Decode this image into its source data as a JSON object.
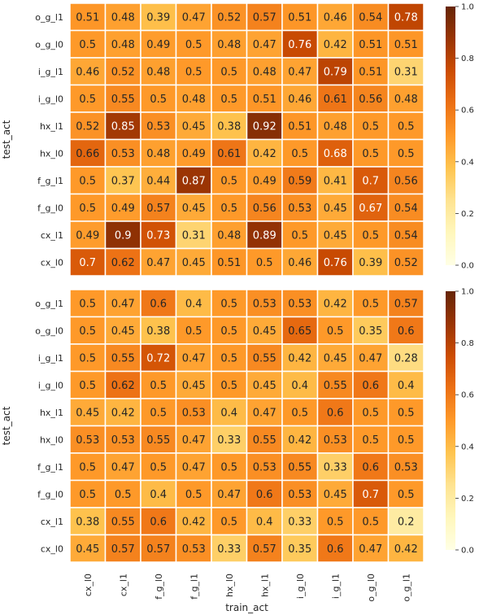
{
  "chart_data": [
    {
      "type": "heatmap",
      "xlabel": "",
      "ylabel": "test_act",
      "x_categories": [
        "cx_l0",
        "cx_l1",
        "f_g_l0",
        "f_g_l1",
        "hx_l0",
        "hx_l1",
        "i_g_l0",
        "i_g_l1",
        "o_g_l0",
        "o_g_l1"
      ],
      "y_categories": [
        "o_g_l1",
        "o_g_l0",
        "i_g_l1",
        "i_g_l0",
        "hx_l1",
        "hx_l0",
        "f_g_l1",
        "f_g_l0",
        "cx_l1",
        "cx_l0"
      ],
      "values": [
        [
          "0.51",
          "0.48",
          "0.39",
          "0.47",
          "0.52",
          "0.57",
          "0.51",
          "0.46",
          "0.54",
          "0.78"
        ],
        [
          "0.5",
          "0.48",
          "0.49",
          "0.5",
          "0.48",
          "0.47",
          "0.76",
          "0.42",
          "0.51",
          "0.51"
        ],
        [
          "0.46",
          "0.52",
          "0.48",
          "0.5",
          "0.5",
          "0.48",
          "0.47",
          "0.79",
          "0.51",
          "0.31"
        ],
        [
          "0.5",
          "0.55",
          "0.5",
          "0.48",
          "0.5",
          "0.51",
          "0.46",
          "0.61",
          "0.56",
          "0.48"
        ],
        [
          "0.52",
          "0.85",
          "0.53",
          "0.45",
          "0.38",
          "0.92",
          "0.51",
          "0.48",
          "0.5",
          "0.5"
        ],
        [
          "0.66",
          "0.53",
          "0.48",
          "0.49",
          "0.61",
          "0.42",
          "0.5",
          "0.68",
          "0.5",
          "0.5"
        ],
        [
          "0.5",
          "0.37",
          "0.44",
          "0.87",
          "0.5",
          "0.49",
          "0.59",
          "0.41",
          "0.7",
          "0.56"
        ],
        [
          "0.5",
          "0.49",
          "0.57",
          "0.45",
          "0.5",
          "0.56",
          "0.53",
          "0.45",
          "0.67",
          "0.54"
        ],
        [
          "0.49",
          "0.9",
          "0.73",
          "0.31",
          "0.48",
          "0.89",
          "0.5",
          "0.45",
          "0.5",
          "0.54"
        ],
        [
          "0.7",
          "0.62",
          "0.47",
          "0.45",
          "0.51",
          "0.5",
          "0.46",
          "0.76",
          "0.39",
          "0.52"
        ]
      ],
      "vmin": 0.0,
      "vmax": 1.0,
      "colorbar_ticks": [
        "0.0",
        "0.2",
        "0.4",
        "0.6",
        "0.8",
        "1.0"
      ],
      "colormap": "YlOrBr",
      "colorbar_position": "right"
    },
    {
      "type": "heatmap",
      "xlabel": "train_act",
      "ylabel": "test_act",
      "x_categories": [
        "cx_l0",
        "cx_l1",
        "f_g_l0",
        "f_g_l1",
        "hx_l0",
        "hx_l1",
        "i_g_l0",
        "i_g_l1",
        "o_g_l0",
        "o_g_l1"
      ],
      "y_categories": [
        "o_g_l1",
        "o_g_l0",
        "i_g_l1",
        "i_g_l0",
        "hx_l1",
        "hx_l0",
        "f_g_l1",
        "f_g_l0",
        "cx_l1",
        "cx_l0"
      ],
      "values": [
        [
          "0.5",
          "0.47",
          "0.6",
          "0.4",
          "0.5",
          "0.53",
          "0.53",
          "0.42",
          "0.5",
          "0.57"
        ],
        [
          "0.5",
          "0.45",
          "0.38",
          "0.5",
          "0.5",
          "0.45",
          "0.65",
          "0.5",
          "0.35",
          "0.6"
        ],
        [
          "0.5",
          "0.55",
          "0.72",
          "0.47",
          "0.5",
          "0.55",
          "0.42",
          "0.45",
          "0.47",
          "0.28"
        ],
        [
          "0.5",
          "0.62",
          "0.5",
          "0.45",
          "0.5",
          "0.45",
          "0.4",
          "0.55",
          "0.6",
          "0.4"
        ],
        [
          "0.45",
          "0.42",
          "0.5",
          "0.53",
          "0.4",
          "0.47",
          "0.5",
          "0.6",
          "0.5",
          "0.5"
        ],
        [
          "0.53",
          "0.53",
          "0.55",
          "0.47",
          "0.33",
          "0.55",
          "0.42",
          "0.53",
          "0.5",
          "0.5"
        ],
        [
          "0.5",
          "0.47",
          "0.5",
          "0.47",
          "0.5",
          "0.53",
          "0.55",
          "0.33",
          "0.6",
          "0.53"
        ],
        [
          "0.5",
          "0.5",
          "0.4",
          "0.5",
          "0.47",
          "0.6",
          "0.53",
          "0.45",
          "0.7",
          "0.5"
        ],
        [
          "0.38",
          "0.55",
          "0.6",
          "0.42",
          "0.5",
          "0.4",
          "0.33",
          "0.5",
          "0.5",
          "0.2"
        ],
        [
          "0.45",
          "0.57",
          "0.57",
          "0.53",
          "0.33",
          "0.57",
          "0.35",
          "0.6",
          "0.47",
          "0.42"
        ]
      ],
      "vmin": 0.0,
      "vmax": 1.0,
      "colorbar_ticks": [
        "0.0",
        "0.2",
        "0.4",
        "0.6",
        "0.8",
        "1.0"
      ],
      "colormap": "YlOrBr",
      "colorbar_position": "right"
    }
  ]
}
